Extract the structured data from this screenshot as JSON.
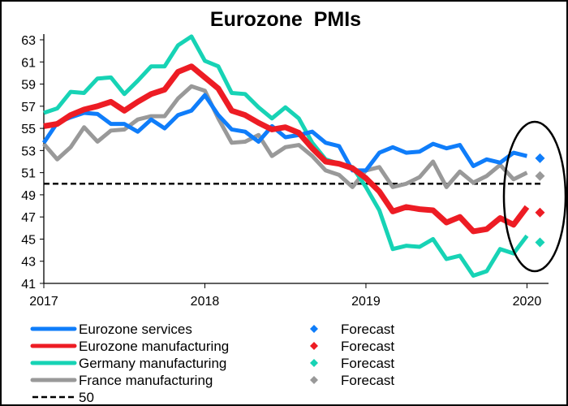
{
  "chart_data": {
    "type": "line",
    "title": "Eurozone  PMIs",
    "xlabel": "",
    "ylabel": "",
    "ylim": [
      41,
      63
    ],
    "yticks": [
      41,
      43,
      45,
      47,
      49,
      51,
      53,
      55,
      57,
      59,
      61,
      63
    ],
    "xticks": [
      "2017",
      "2018",
      "2019",
      "2020"
    ],
    "x_start": "2017-01",
    "x_end": "2020-01",
    "frequency": "monthly",
    "grid": false,
    "legend_position": "bottom",
    "reference_line": {
      "label": "50",
      "value": 50,
      "style": "dashed",
      "color": "#000000"
    },
    "forecast_label": "Forecast",
    "forecast_month": "2020-02",
    "series": [
      {
        "name": "Eurozone services",
        "color": "#0f7dfa",
        "values": [
          53.7,
          55.5,
          56.0,
          56.4,
          56.3,
          55.4,
          55.4,
          54.7,
          55.8,
          55.0,
          56.2,
          56.6,
          58.0,
          56.2,
          54.9,
          54.7,
          53.8,
          55.2,
          54.2,
          54.4,
          54.7,
          53.7,
          53.4,
          51.2,
          51.2,
          52.8,
          53.3,
          52.8,
          52.9,
          53.6,
          53.2,
          53.5,
          51.6,
          52.2,
          51.9,
          52.8,
          52.5
        ],
        "forecast": 52.3
      },
      {
        "name": "Eurozone manufacturing",
        "color": "#ed1c24",
        "values": [
          55.2,
          55.4,
          56.2,
          56.7,
          57.0,
          57.4,
          56.6,
          57.4,
          58.1,
          58.5,
          60.1,
          60.6,
          59.6,
          58.6,
          56.6,
          56.2,
          55.5,
          54.9,
          55.1,
          54.6,
          53.2,
          52.0,
          51.8,
          51.4,
          50.5,
          49.3,
          47.5,
          47.9,
          47.7,
          47.6,
          46.5,
          47.0,
          45.7,
          45.9,
          46.9,
          46.3,
          47.9
        ],
        "forecast": 47.4
      },
      {
        "name": "Germany manufacturing",
        "color": "#17d3b5",
        "values": [
          56.4,
          56.8,
          58.3,
          58.2,
          59.5,
          59.6,
          58.1,
          59.3,
          60.6,
          60.6,
          62.5,
          63.3,
          61.1,
          60.6,
          58.2,
          58.1,
          56.9,
          55.9,
          56.9,
          55.9,
          53.7,
          52.2,
          51.8,
          51.5,
          49.7,
          47.6,
          44.1,
          44.4,
          44.3,
          45.0,
          43.2,
          43.5,
          41.7,
          42.1,
          44.1,
          43.7,
          45.3
        ],
        "forecast": 44.7
      },
      {
        "name": "France manufacturing",
        "color": "#999999",
        "values": [
          53.6,
          52.2,
          53.3,
          55.1,
          53.8,
          54.8,
          54.9,
          55.8,
          56.1,
          56.1,
          57.7,
          58.8,
          58.4,
          55.9,
          53.7,
          53.8,
          54.4,
          52.5,
          53.3,
          53.5,
          52.5,
          51.2,
          50.8,
          49.7,
          51.2,
          51.5,
          49.7,
          50.0,
          50.6,
          52.0,
          49.7,
          51.1,
          50.1,
          50.7,
          51.7,
          50.4,
          51.0
        ],
        "forecast": 50.7
      }
    ],
    "annotations": [
      {
        "type": "ellipse",
        "around": "2020 values and forecasts"
      }
    ]
  }
}
